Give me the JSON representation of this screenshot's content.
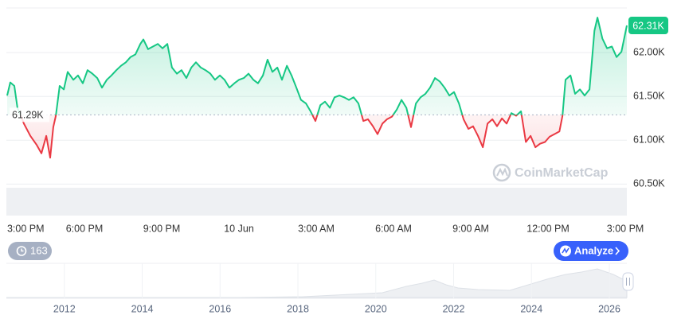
{
  "chart_data": {
    "type": "line",
    "x": [
      0,
      0.12,
      0.28,
      0.4,
      0.65,
      0.9,
      1.14,
      1.33,
      1.52,
      1.67,
      1.79,
      1.89,
      2.04,
      2.2,
      2.35,
      2.57,
      2.75,
      2.94,
      3.12,
      3.31,
      3.5,
      3.68,
      3.87,
      4.05,
      4.24,
      4.42,
      4.61,
      4.79,
      4.98,
      5.17,
      5.29,
      5.47,
      5.66,
      5.85,
      6.03,
      6.22,
      6.4,
      6.59,
      6.77,
      6.96,
      7.15,
      7.33,
      7.52,
      7.7,
      7.89,
      8.07,
      8.26,
      8.44,
      8.63,
      8.82,
      9.0,
      9.19,
      9.37,
      9.56,
      9.74,
      9.93,
      10.11,
      10.3,
      10.49,
      10.67,
      10.86,
      11.04,
      11.23,
      11.41,
      11.6,
      11.78,
      11.97,
      12.16,
      12.34,
      12.53,
      12.71,
      12.9,
      13.08,
      13.27,
      13.45,
      13.64,
      13.83,
      14.01,
      14.2,
      14.38,
      14.57,
      14.75,
      14.94,
      15.13,
      15.31,
      15.5,
      15.68,
      15.87,
      16.05,
      16.24,
      16.42,
      16.61,
      16.8,
      16.98,
      17.17,
      17.35,
      17.54,
      17.72,
      17.91,
      18.09,
      18.28,
      18.47,
      18.65,
      18.84,
      19.02,
      19.21,
      19.39,
      19.58,
      19.76,
      19.95,
      20.14,
      20.32,
      20.51,
      20.69,
      20.88,
      21.06,
      21.25,
      21.44,
      21.56,
      21.68,
      21.87,
      22.05,
      22.24,
      22.42,
      22.61,
      22.8,
      22.92,
      23.11,
      23.29,
      23.48,
      23.66,
      23.85,
      24.06
    ],
    "values": [
      61510,
      61660,
      61620,
      61370,
      61190,
      61050,
      60950,
      60850,
      61050,
      60800,
      61150,
      61280,
      61620,
      61580,
      61780,
      61690,
      61740,
      61650,
      61800,
      61760,
      61710,
      61600,
      61690,
      61740,
      61800,
      61850,
      61890,
      61950,
      61980,
      62100,
      62150,
      62040,
      62070,
      62100,
      62050,
      62100,
      61830,
      61760,
      61800,
      61710,
      61830,
      61890,
      61830,
      61800,
      61760,
      61690,
      61740,
      61690,
      61600,
      61650,
      61690,
      61710,
      61760,
      61690,
      61650,
      61740,
      61920,
      61780,
      61830,
      61690,
      61850,
      61740,
      61600,
      61460,
      61420,
      61330,
      61220,
      61400,
      61440,
      61370,
      61490,
      61510,
      61490,
      61460,
      61490,
      61420,
      61220,
      61240,
      61160,
      61070,
      61190,
      61240,
      61270,
      61350,
      61460,
      61370,
      61150,
      61420,
      61490,
      61530,
      61600,
      61710,
      61670,
      61600,
      61510,
      61550,
      61420,
      61240,
      61130,
      61160,
      61050,
      60920,
      61190,
      61240,
      61160,
      61250,
      61190,
      61310,
      61280,
      61330,
      60980,
      61050,
      60920,
      60960,
      60980,
      61040,
      61070,
      61100,
      61280,
      61690,
      61740,
      61530,
      61580,
      61510,
      61580,
      62250,
      62400,
      62160,
      62050,
      62070,
      61950,
      62010,
      62310
    ],
    "color_up": "#16c784",
    "color_down": "#ea3943",
    "baseline": {
      "value": 61290,
      "label": "61.29K"
    },
    "last_price": {
      "value": 62310,
      "label": "62.31K"
    },
    "xlim": [
      -0.03,
      24.06
    ],
    "xticks": [
      {
        "value": 0,
        "label": "3:00 PM"
      },
      {
        "value": 3,
        "label": "6:00 PM"
      },
      {
        "value": 6,
        "label": "9:00 PM"
      },
      {
        "value": 9,
        "label": "10 Jun"
      },
      {
        "value": 12,
        "label": "3:00 AM"
      },
      {
        "value": 15,
        "label": "6:00 AM"
      },
      {
        "value": 18,
        "label": "9:00 AM"
      },
      {
        "value": 21,
        "label": "12:00 PM"
      },
      {
        "value": 24,
        "label": "3:00 PM"
      }
    ],
    "ylim": [
      60140,
      62510
    ],
    "yticks": [
      {
        "value": 60500,
        "label": "60.50K"
      },
      {
        "value": 61000,
        "label": "61.00K"
      },
      {
        "value": 61500,
        "label": "61.50K"
      },
      {
        "value": 62000,
        "label": "62.00K"
      }
    ],
    "grid": true
  },
  "navigator": {
    "xlim": [
      2010.51,
      2026.45
    ],
    "xticks": [
      2012,
      2014,
      2016,
      2018,
      2020,
      2022,
      2024,
      2026
    ]
  },
  "watermark": "CoinMarketCap",
  "history_count": "163",
  "analyze_button": "Analyze"
}
